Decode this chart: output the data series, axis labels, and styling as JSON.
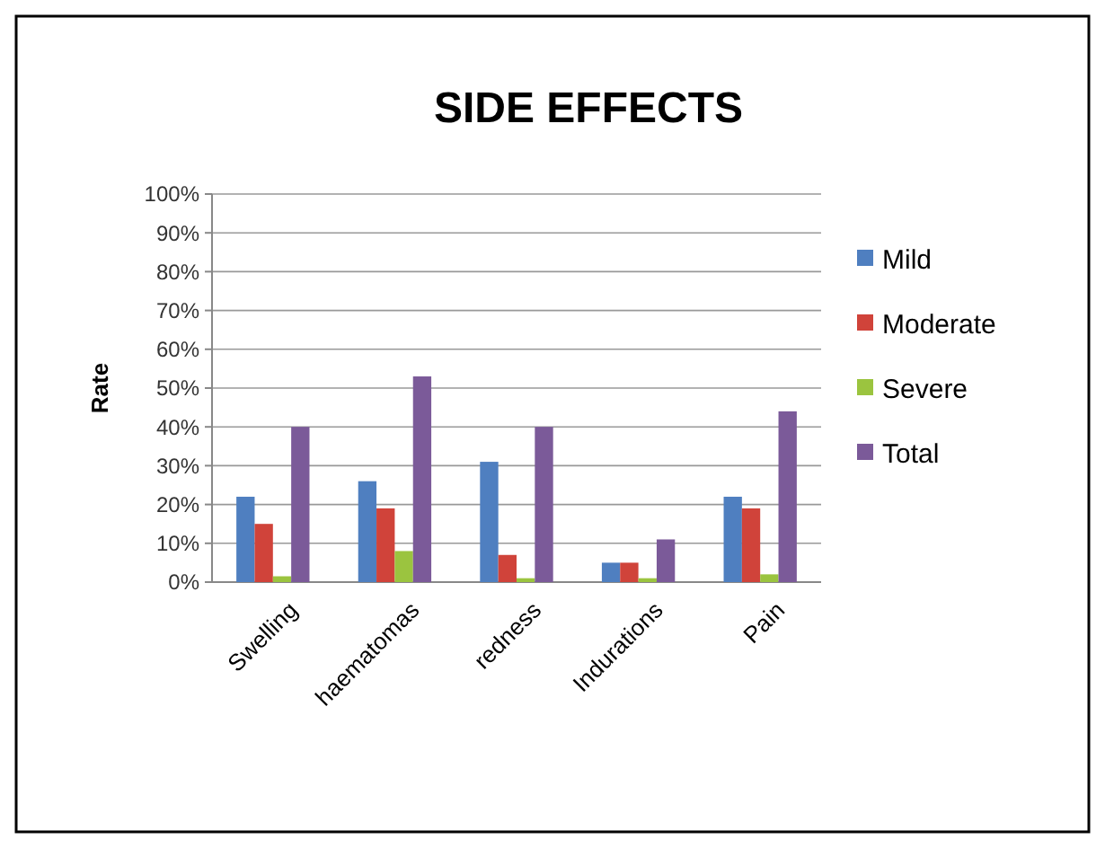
{
  "chart_data": {
    "type": "bar",
    "title": "SIDE EFFECTS",
    "ylabel": "Rate",
    "categories": [
      "Swelling",
      "haematomas",
      "redness",
      "Indurations",
      "Pain"
    ],
    "series": [
      {
        "name": "Mild",
        "color": "#4f7fc0",
        "values": [
          22,
          26,
          31,
          5,
          22
        ]
      },
      {
        "name": "Moderate",
        "color": "#d0433a",
        "values": [
          15,
          19,
          7,
          5,
          19
        ]
      },
      {
        "name": "Severe",
        "color": "#9bc43f",
        "values": [
          1.5,
          8,
          1,
          1,
          2
        ]
      },
      {
        "name": "Total",
        "color": "#7b5a99",
        "values": [
          40,
          53,
          40,
          11,
          44
        ]
      }
    ],
    "ylim": [
      0,
      100
    ],
    "yticks": [
      {
        "value": 0,
        "label": "0%"
      },
      {
        "value": 10,
        "label": "10%"
      },
      {
        "value": 20,
        "label": "20%"
      },
      {
        "value": 30,
        "label": "30%"
      },
      {
        "value": 40,
        "label": "40%"
      },
      {
        "value": 50,
        "label": "50%"
      },
      {
        "value": 60,
        "label": "60%"
      },
      {
        "value": 70,
        "label": "70%"
      },
      {
        "value": 80,
        "label": "80%"
      },
      {
        "value": 90,
        "label": "90%"
      },
      {
        "value": 100,
        "label": "100%"
      }
    ],
    "grid": "y",
    "legend": "right"
  }
}
